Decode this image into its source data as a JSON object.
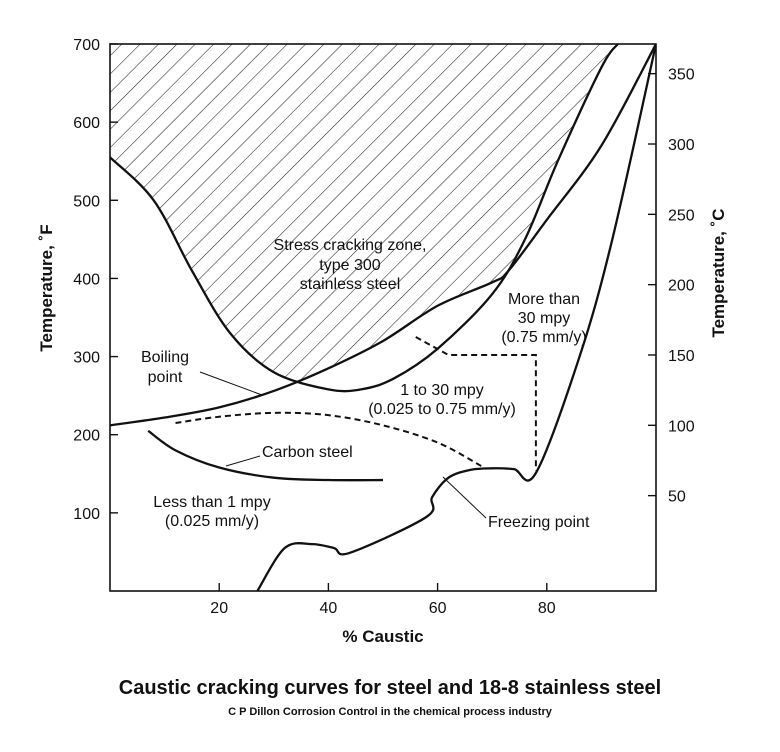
{
  "caption": {
    "title": "Caustic cracking curves for steel and 18-8 stainless steel",
    "source": "C P Dillon Corrosion Control in the chemical process industry"
  },
  "chart_data": {
    "type": "line",
    "xlabel": "% Caustic",
    "ylabel": "Temperature, ˚F",
    "y2label": "Temperature, ˚C",
    "xlim": [
      0,
      100
    ],
    "ylim": [
      0,
      700
    ],
    "y2lim": [
      -17.8,
      371.1
    ],
    "grid": false,
    "x_ticks": [
      20,
      40,
      60,
      80
    ],
    "y_ticks": [
      100,
      200,
      300,
      400,
      500,
      600,
      700
    ],
    "y2_ticks": [
      50,
      100,
      150,
      200,
      250,
      300,
      350
    ],
    "series": [
      {
        "name": "Boiling point",
        "style": "solid",
        "x": [
          0,
          10,
          20,
          30,
          40,
          50,
          60,
          70,
          73,
          80,
          90,
          100
        ],
        "y": [
          212,
          222,
          235,
          256,
          285,
          320,
          365,
          395,
          410,
          475,
          570,
          700
        ]
      },
      {
        "name": "Freezing point",
        "style": "solid",
        "x": [
          27,
          32,
          37,
          41,
          44,
          58,
          59,
          62,
          66,
          70,
          74,
          78,
          86,
          92,
          100
        ],
        "y": [
          0,
          55,
          60,
          55,
          49,
          95,
          120,
          145,
          155,
          157,
          156,
          151,
          300,
          450,
          700
        ]
      },
      {
        "name": "Stress cracking zone, type 300 stainless steel",
        "style": "solid",
        "x": [
          0,
          8,
          15,
          22,
          30,
          40,
          46,
          52,
          60,
          70,
          76,
          82,
          90,
          93
        ],
        "y": [
          555,
          500,
          410,
          330,
          280,
          258,
          258,
          272,
          310,
          380,
          450,
          550,
          670,
          700
        ]
      },
      {
        "name": "Carbon steel",
        "style": "solid",
        "x": [
          7,
          12,
          20,
          30,
          40,
          50
        ],
        "y": [
          205,
          180,
          158,
          145,
          142,
          142
        ]
      },
      {
        "name": "1 to 30 mpy boundary",
        "style": "dashed",
        "x": [
          12,
          20,
          30,
          40,
          50,
          60,
          68
        ],
        "y": [
          215,
          223,
          228,
          225,
          212,
          190,
          160
        ]
      },
      {
        "name": "More than 30 mpy boundary",
        "style": "dashed",
        "x": [
          56,
          62,
          78,
          78
        ],
        "y": [
          325,
          302,
          302,
          154
        ]
      }
    ],
    "regions": [
      {
        "name": "Stress cracking zone",
        "label_lines": [
          "Stress cracking zone,",
          "type 300",
          "stainless steel"
        ],
        "fill": "hatched"
      }
    ],
    "annotations": {
      "stress_zone": [
        "Stress cracking zone,",
        "type 300",
        "stainless steel"
      ],
      "more_than": [
        "More than",
        "30 mpy",
        "(0.75 mm/y)"
      ],
      "mid_rate": [
        "1 to 30 mpy",
        "(0.025 to 0.75 mm/y)"
      ],
      "less_than": [
        "Less than 1 mpy",
        "(0.025 mm/y)"
      ],
      "boiling": [
        "Boiling",
        "point"
      ],
      "carbon": "Carbon steel",
      "freezing": "Freezing point"
    }
  }
}
